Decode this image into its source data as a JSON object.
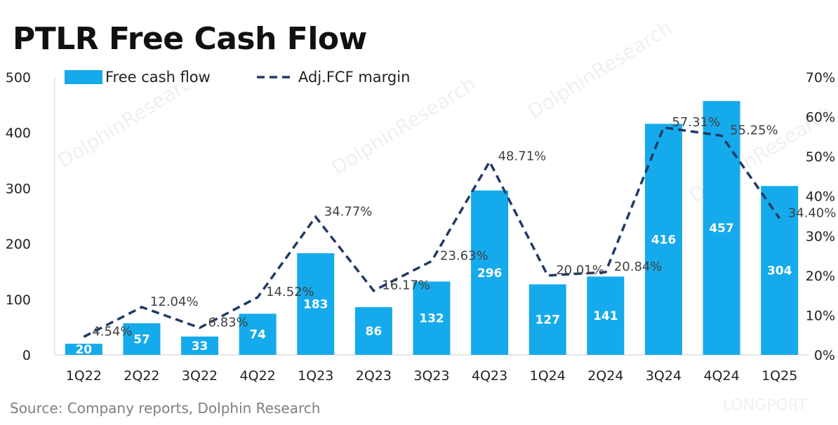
{
  "title": "PTLR Free Cash Flow",
  "source": "Source:  Company reports, Dolphin Research",
  "watermarks": [
    "DolphinResearch",
    "LONGPORT"
  ],
  "colors": {
    "bar": "#15aaeb",
    "line": "#213a66",
    "axis": "#d0d0d0"
  },
  "chart_data": {
    "type": "bar",
    "categories": [
      "1Q22",
      "2Q22",
      "3Q22",
      "4Q22",
      "1Q23",
      "2Q23",
      "3Q23",
      "4Q23",
      "1Q24",
      "2Q24",
      "3Q24",
      "4Q24",
      "1Q25"
    ],
    "series": [
      {
        "name": "Free cash flow",
        "type": "bar",
        "axis": "left",
        "values": [
          20,
          57,
          33,
          74,
          183,
          86,
          132,
          296,
          127,
          141,
          416,
          457,
          304
        ],
        "labels": [
          "20",
          "57",
          "33",
          "74",
          "183",
          "86",
          "132",
          "296",
          "127",
          "141",
          "416",
          "457",
          "304"
        ]
      },
      {
        "name": "Adj.FCF margin",
        "type": "line",
        "style": "dashed",
        "axis": "right",
        "values": [
          4.54,
          12.04,
          6.83,
          14.52,
          34.77,
          16.17,
          23.63,
          48.71,
          20.01,
          20.84,
          57.31,
          55.25,
          34.4
        ],
        "labels": [
          "4.54%",
          "12.04%",
          "6.83%",
          "14.52%",
          "34.77%",
          "16.17%",
          "23.63%",
          "48.71%",
          "20.01%",
          "20.84%",
          "57.31%",
          "55.25%",
          "34.40%"
        ]
      }
    ],
    "left_axis": {
      "ylim": [
        0,
        500
      ],
      "ticks": [
        "0",
        "100",
        "200",
        "300",
        "400",
        "500"
      ]
    },
    "right_axis": {
      "ylim": [
        0,
        70
      ],
      "ticks": [
        "0%",
        "10%",
        "20%",
        "30%",
        "40%",
        "50%",
        "60%",
        "70%"
      ]
    },
    "legend": "top-left",
    "grid": false
  }
}
